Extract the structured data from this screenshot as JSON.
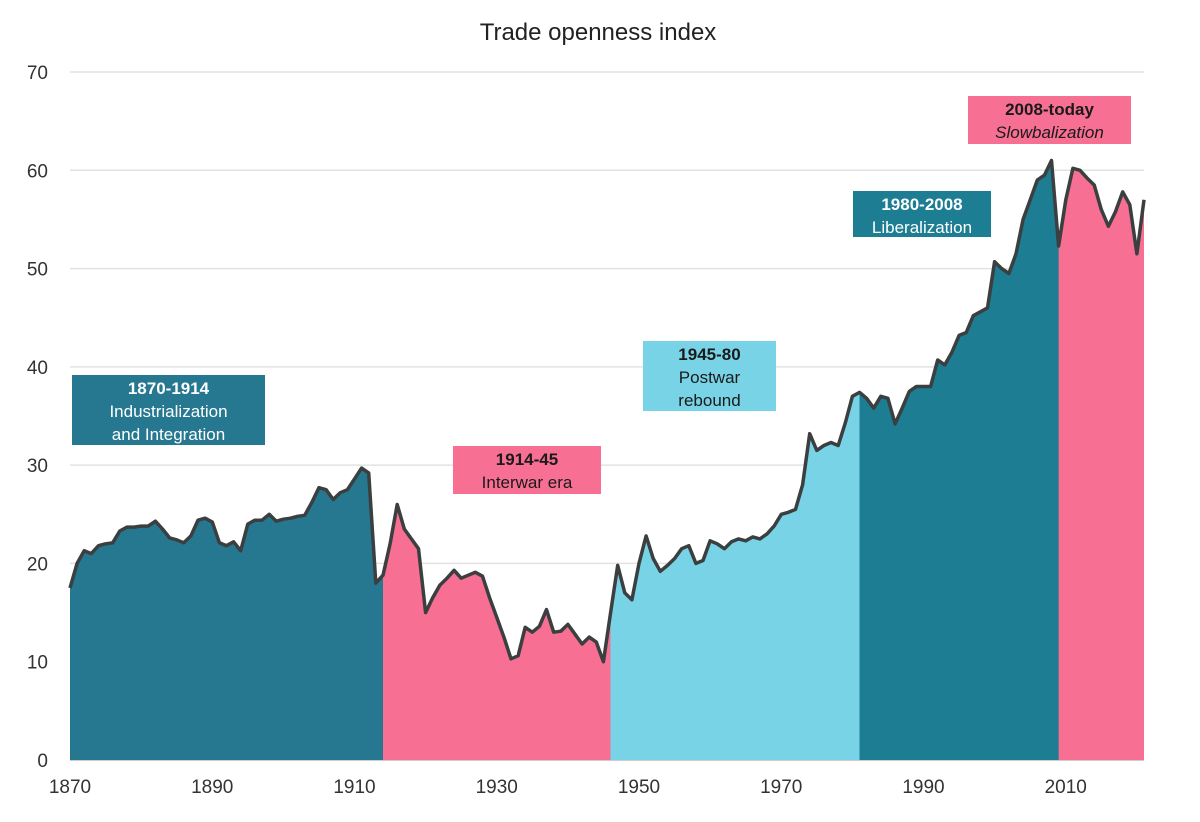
{
  "chart_data": {
    "type": "area",
    "title": "Trade openness index",
    "xlabel": "",
    "ylabel": "",
    "xlim": [
      1870,
      2021
    ],
    "ylim": [
      0,
      70
    ],
    "grid": true,
    "y_ticks": [
      0,
      10,
      20,
      30,
      40,
      50,
      60,
      70
    ],
    "x_ticks": [
      1870,
      1890,
      1910,
      1930,
      1950,
      1970,
      1990,
      2010
    ],
    "start_year": 1870,
    "values": [
      17.5,
      20,
      21.3,
      21,
      21.8,
      22,
      22.1,
      23.3,
      23.7,
      23.7,
      23.8,
      23.8,
      24.3,
      23.5,
      22.6,
      22.4,
      22.1,
      22.8,
      24.4,
      24.6,
      24.2,
      22.1,
      21.8,
      22.2,
      21.3,
      24,
      24.4,
      24.4,
      25,
      24.3,
      24.5,
      24.6,
      24.8,
      24.9,
      26.2,
      27.7,
      27.5,
      26.5,
      27.2,
      27.5,
      28.6,
      29.7,
      29.2,
      18,
      18.8,
      22,
      26,
      23.5,
      22.5,
      21.5,
      15,
      16.5,
      17.8,
      18.5,
      19.3,
      18.5,
      18.8,
      19.1,
      18.7,
      16.5,
      14.5,
      12.5,
      10.3,
      10.6,
      13.5,
      13,
      13.6,
      15.3,
      13,
      13.1,
      13.8,
      12.8,
      11.8,
      12.5,
      12,
      10,
      15,
      19.8,
      17,
      16.3,
      20,
      22.8,
      20.5,
      19.2,
      19.8,
      20.5,
      21.5,
      21.8,
      20,
      20.3,
      22.3,
      22,
      21.5,
      22.2,
      22.5,
      22.3,
      22.7,
      22.5,
      23,
      23.8,
      25,
      25.2,
      25.5,
      28,
      33.2,
      31.5,
      32,
      32.3,
      32,
      34.3,
      37,
      37.4,
      36.8,
      35.8,
      37,
      36.8,
      34.2,
      35.8,
      37.5,
      38,
      38,
      38,
      40.7,
      40.2,
      41.5,
      43.2,
      43.5,
      45.2,
      45.6,
      46,
      50.7,
      50,
      49.5,
      51.5,
      55,
      57,
      59,
      59.5,
      61,
      52.3,
      57,
      60.2,
      60,
      59.2,
      58.5,
      56,
      54.3,
      55.8,
      57.8,
      56.5,
      51.5,
      57
    ],
    "line_color": "#3b3f3f",
    "eras": [
      {
        "id": "industrialization",
        "start": 1870,
        "end": 1914,
        "color": "#267891",
        "title": "1870-1914",
        "subtitle": [
          "Industrialization",
          "and Integration"
        ],
        "text_color": "#ffffff",
        "italic_sub": false
      },
      {
        "id": "interwar",
        "start": 1914,
        "end": 1946,
        "color": "#f76f92",
        "title": "1914-45",
        "subtitle": [
          "Interwar era"
        ],
        "text_color": "#1a1a1a",
        "italic_sub": false
      },
      {
        "id": "postwar",
        "start": 1946,
        "end": 1981,
        "color": "#79d3e6",
        "title": "1945-80",
        "subtitle": [
          "Postwar",
          "rebound"
        ],
        "text_color": "#1a1a1a",
        "italic_sub": false
      },
      {
        "id": "liberalization",
        "start": 1981,
        "end": 2009,
        "color": "#1c7d93",
        "title": "1980-2008",
        "subtitle": [
          "Liberalization"
        ],
        "text_color": "#ffffff",
        "italic_sub": false
      },
      {
        "id": "slowbalization",
        "start": 2009,
        "end": 2021,
        "color": "#f76f92",
        "title": "2008-today",
        "subtitle": [
          "Slowbalization"
        ],
        "text_color": "#1a1a1a",
        "italic_sub": true
      }
    ]
  }
}
